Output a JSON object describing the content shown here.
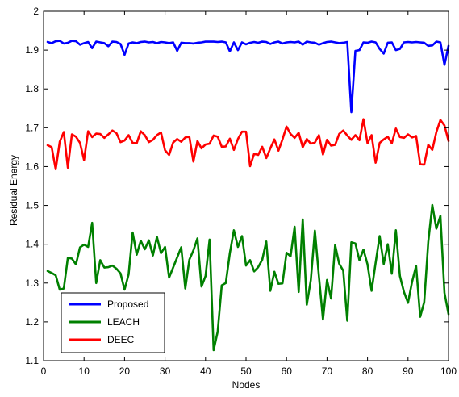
{
  "chart_data": {
    "type": "line",
    "title": "",
    "xlabel": "Nodes",
    "ylabel": "Residual Energy",
    "xlim": [
      0,
      100
    ],
    "ylim": [
      1.1,
      2.0
    ],
    "xticks": [
      0,
      10,
      20,
      30,
      40,
      50,
      60,
      70,
      80,
      90,
      100
    ],
    "yticks": [
      1.1,
      1.2,
      1.3,
      1.4,
      1.5,
      1.6,
      1.7,
      1.8,
      1.9,
      2.0
    ],
    "xtick_labels": [
      "0",
      "10",
      "20",
      "30",
      "40",
      "50",
      "60",
      "70",
      "80",
      "90",
      "100"
    ],
    "ytick_labels": [
      "1.1",
      "1.2",
      "1.3",
      "1.4",
      "1.5",
      "1.6",
      "1.7",
      "1.8",
      "1.9",
      "2"
    ],
    "grid": false,
    "legend_position": "bottom-left",
    "series": [
      {
        "name": "Proposed",
        "color": "#0000ff",
        "x": [
          1,
          2,
          3,
          4,
          5,
          6,
          7,
          8,
          9,
          10,
          11,
          12,
          13,
          14,
          15,
          16,
          17,
          18,
          19,
          20,
          21,
          22,
          23,
          24,
          25,
          26,
          27,
          28,
          29,
          30,
          31,
          32,
          33,
          34,
          35,
          36,
          37,
          38,
          39,
          40,
          41,
          42,
          43,
          44,
          45,
          46,
          47,
          48,
          49,
          50,
          51,
          52,
          53,
          54,
          55,
          56,
          57,
          58,
          59,
          60,
          61,
          62,
          63,
          64,
          65,
          66,
          67,
          68,
          69,
          70,
          71,
          72,
          73,
          74,
          75,
          76,
          77,
          78,
          79,
          80,
          81,
          82,
          83,
          84,
          85,
          86,
          87,
          88,
          89,
          90,
          91,
          92,
          93,
          94,
          95,
          96,
          97,
          98,
          99,
          100
        ],
        "values": [
          1.921,
          1.918,
          1.923,
          1.924,
          1.917,
          1.919,
          1.924,
          1.923,
          1.914,
          1.918,
          1.921,
          1.905,
          1.922,
          1.92,
          1.918,
          1.91,
          1.922,
          1.921,
          1.916,
          1.888,
          1.917,
          1.92,
          1.918,
          1.921,
          1.922,
          1.92,
          1.921,
          1.918,
          1.921,
          1.92,
          1.918,
          1.92,
          1.898,
          1.919,
          1.918,
          1.918,
          1.917,
          1.919,
          1.92,
          1.922,
          1.922,
          1.922,
          1.921,
          1.922,
          1.92,
          1.897,
          1.92,
          1.9,
          1.92,
          1.915,
          1.919,
          1.921,
          1.919,
          1.922,
          1.921,
          1.916,
          1.92,
          1.922,
          1.917,
          1.92,
          1.921,
          1.92,
          1.922,
          1.914,
          1.922,
          1.92,
          1.919,
          1.914,
          1.918,
          1.921,
          1.922,
          1.92,
          1.918,
          1.919,
          1.921,
          1.74,
          1.898,
          1.9,
          1.92,
          1.919,
          1.922,
          1.92,
          1.903,
          1.891,
          1.919,
          1.92,
          1.9,
          1.903,
          1.92,
          1.921,
          1.92,
          1.921,
          1.92,
          1.919,
          1.911,
          1.912,
          1.922,
          1.92,
          1.862,
          1.911
        ]
      },
      {
        "name": "LEACH",
        "color": "#008000",
        "x": [
          1,
          2,
          3,
          4,
          5,
          6,
          7,
          8,
          9,
          10,
          11,
          12,
          13,
          14,
          15,
          16,
          17,
          18,
          19,
          20,
          21,
          22,
          23,
          24,
          25,
          26,
          27,
          28,
          29,
          30,
          31,
          32,
          33,
          34,
          35,
          36,
          37,
          38,
          39,
          40,
          41,
          42,
          43,
          44,
          45,
          46,
          47,
          48,
          49,
          50,
          51,
          52,
          53,
          54,
          55,
          56,
          57,
          58,
          59,
          60,
          61,
          62,
          63,
          64,
          65,
          66,
          67,
          68,
          69,
          70,
          71,
          72,
          73,
          74,
          75,
          76,
          77,
          78,
          79,
          80,
          81,
          82,
          83,
          84,
          85,
          86,
          87,
          88,
          89,
          90,
          91,
          92,
          93,
          94,
          95,
          96,
          97,
          98,
          99,
          100
        ],
        "values": [
          1.331,
          1.326,
          1.32,
          1.283,
          1.286,
          1.365,
          1.363,
          1.348,
          1.392,
          1.399,
          1.393,
          1.455,
          1.3,
          1.359,
          1.34,
          1.341,
          1.345,
          1.337,
          1.325,
          1.283,
          1.322,
          1.43,
          1.373,
          1.409,
          1.387,
          1.41,
          1.371,
          1.419,
          1.377,
          1.393,
          1.314,
          1.34,
          1.366,
          1.392,
          1.286,
          1.36,
          1.384,
          1.415,
          1.291,
          1.318,
          1.412,
          1.127,
          1.175,
          1.294,
          1.3,
          1.377,
          1.436,
          1.393,
          1.421,
          1.345,
          1.359,
          1.33,
          1.341,
          1.36,
          1.407,
          1.28,
          1.329,
          1.298,
          1.299,
          1.378,
          1.369,
          1.445,
          1.277,
          1.464,
          1.244,
          1.308,
          1.435,
          1.317,
          1.206,
          1.308,
          1.26,
          1.398,
          1.35,
          1.332,
          1.203,
          1.405,
          1.402,
          1.359,
          1.386,
          1.348,
          1.28,
          1.352,
          1.421,
          1.349,
          1.4,
          1.324,
          1.436,
          1.318,
          1.277,
          1.249,
          1.303,
          1.344,
          1.213,
          1.251,
          1.406,
          1.501,
          1.44,
          1.473,
          1.275,
          1.22
        ]
      },
      {
        "name": "DEEC",
        "color": "#ff0000",
        "x": [
          1,
          2,
          3,
          4,
          5,
          6,
          7,
          8,
          9,
          10,
          11,
          12,
          13,
          14,
          15,
          16,
          17,
          18,
          19,
          20,
          21,
          22,
          23,
          24,
          25,
          26,
          27,
          28,
          29,
          30,
          31,
          32,
          33,
          34,
          35,
          36,
          37,
          38,
          39,
          40,
          41,
          42,
          43,
          44,
          45,
          46,
          47,
          48,
          49,
          50,
          51,
          52,
          53,
          54,
          55,
          56,
          57,
          58,
          59,
          60,
          61,
          62,
          63,
          64,
          65,
          66,
          67,
          68,
          69,
          70,
          71,
          72,
          73,
          74,
          75,
          76,
          77,
          78,
          79,
          80,
          81,
          82,
          83,
          84,
          85,
          86,
          87,
          88,
          89,
          90,
          91,
          92,
          93,
          94,
          95,
          96,
          97,
          98,
          99,
          100
        ],
        "values": [
          1.655,
          1.65,
          1.593,
          1.664,
          1.689,
          1.597,
          1.683,
          1.677,
          1.661,
          1.617,
          1.691,
          1.676,
          1.685,
          1.684,
          1.674,
          1.683,
          1.693,
          1.686,
          1.663,
          1.667,
          1.681,
          1.661,
          1.66,
          1.691,
          1.681,
          1.663,
          1.669,
          1.681,
          1.688,
          1.642,
          1.63,
          1.662,
          1.671,
          1.664,
          1.675,
          1.677,
          1.613,
          1.666,
          1.647,
          1.657,
          1.659,
          1.68,
          1.677,
          1.651,
          1.652,
          1.672,
          1.643,
          1.671,
          1.69,
          1.69,
          1.601,
          1.633,
          1.63,
          1.651,
          1.622,
          1.647,
          1.67,
          1.641,
          1.67,
          1.703,
          1.684,
          1.674,
          1.687,
          1.65,
          1.671,
          1.659,
          1.662,
          1.681,
          1.631,
          1.669,
          1.654,
          1.656,
          1.684,
          1.693,
          1.68,
          1.669,
          1.681,
          1.668,
          1.722,
          1.66,
          1.681,
          1.61,
          1.661,
          1.67,
          1.677,
          1.66,
          1.698,
          1.676,
          1.674,
          1.683,
          1.675,
          1.679,
          1.606,
          1.605,
          1.656,
          1.643,
          1.689,
          1.72,
          1.706,
          1.666
        ]
      }
    ]
  }
}
